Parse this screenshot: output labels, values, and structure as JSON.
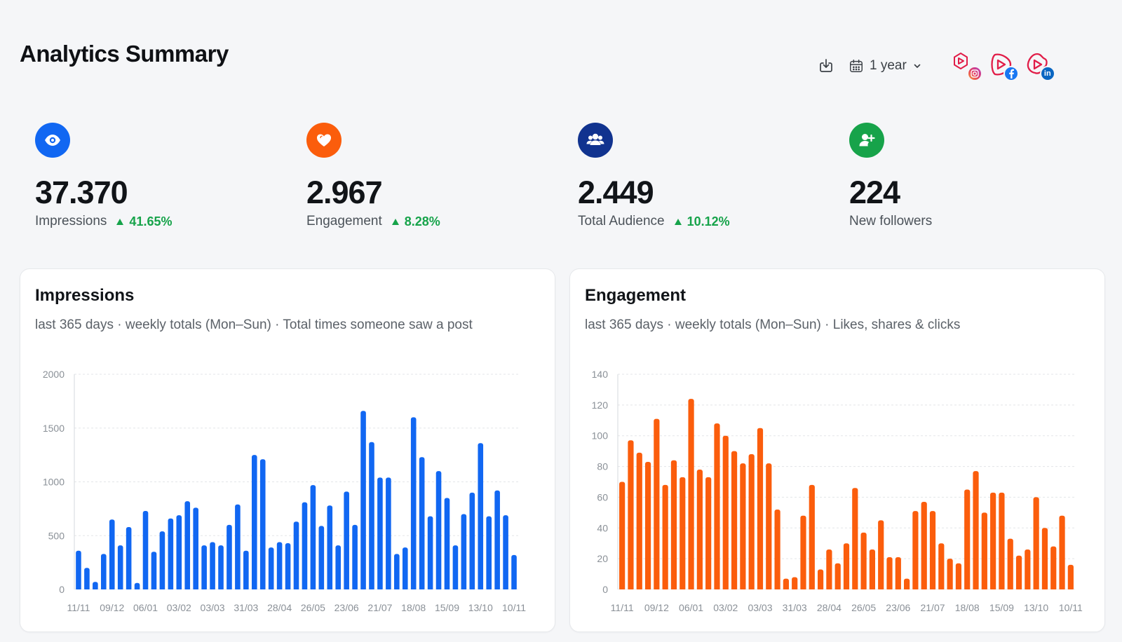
{
  "page": {
    "title": "Analytics Summary"
  },
  "toolbar": {
    "download_icon": "download-icon",
    "range_label": "1 year",
    "accounts": [
      {
        "network": "Instagram",
        "badge": "instagram-icon"
      },
      {
        "network": "Facebook",
        "badge": "facebook-icon"
      },
      {
        "network": "LinkedIn",
        "badge": "linkedin-icon",
        "badge_text": "in"
      }
    ]
  },
  "kpis": [
    {
      "icon": "eye-icon",
      "color": "#1167f2",
      "value": "37.370",
      "label": "Impressions",
      "change": "41.65%"
    },
    {
      "icon": "heart-icon",
      "color": "#fb5d0c",
      "value": "2.967",
      "label": "Engagement",
      "change": "8.28%"
    },
    {
      "icon": "users-icon",
      "color": "#11338f",
      "value": "2.449",
      "label": "Total Audience",
      "change": "10.12%"
    },
    {
      "icon": "user-plus-icon",
      "color": "#17a34a",
      "value": "224",
      "label": "New followers",
      "change": ""
    }
  ],
  "charts": [
    {
      "title": "Impressions",
      "subtitle": "last 365 days · weekly totals (Mon–Sun) · Total times someone saw a post"
    },
    {
      "title": "Engagement",
      "subtitle": "last 365 days · weekly totals (Mon–Sun) · Likes, shares & clicks"
    }
  ],
  "chart_data": [
    {
      "type": "bar",
      "title": "Impressions",
      "color": "#1167f2",
      "ylim": [
        0,
        2000
      ],
      "yticks": [
        0,
        500,
        1000,
        1500,
        2000
      ],
      "xtick_labels": [
        "11/11",
        "09/12",
        "06/01",
        "03/02",
        "03/03",
        "31/03",
        "28/04",
        "26/05",
        "23/06",
        "21/07",
        "18/08",
        "15/09",
        "13/10",
        "10/11"
      ],
      "values": [
        360,
        200,
        70,
        330,
        650,
        410,
        580,
        60,
        730,
        350,
        540,
        660,
        690,
        820,
        760,
        410,
        440,
        410,
        600,
        790,
        360,
        1250,
        1210,
        390,
        440,
        430,
        630,
        810,
        970,
        590,
        780,
        410,
        910,
        600,
        1660,
        1370,
        1040,
        1040,
        330,
        390,
        1600,
        1230,
        680,
        1100,
        850,
        410,
        700,
        900,
        1360,
        680,
        920,
        690,
        320
      ]
    },
    {
      "type": "bar",
      "title": "Engagement",
      "color": "#fb5d0c",
      "ylim": [
        0,
        140
      ],
      "yticks": [
        0,
        20,
        40,
        60,
        80,
        100,
        120,
        140
      ],
      "xtick_labels": [
        "11/11",
        "09/12",
        "06/01",
        "03/02",
        "03/03",
        "31/03",
        "28/04",
        "26/05",
        "23/06",
        "21/07",
        "18/08",
        "15/09",
        "13/10",
        "10/11"
      ],
      "values": [
        70,
        97,
        89,
        83,
        111,
        68,
        84,
        73,
        124,
        78,
        73,
        108,
        100,
        90,
        82,
        88,
        105,
        82,
        52,
        7,
        8,
        48,
        68,
        13,
        26,
        17,
        30,
        66,
        37,
        26,
        45,
        21,
        21,
        7,
        51,
        57,
        51,
        30,
        20,
        17,
        65,
        77,
        50,
        63,
        63,
        33,
        22,
        26,
        60,
        40,
        28,
        48,
        16
      ]
    }
  ]
}
